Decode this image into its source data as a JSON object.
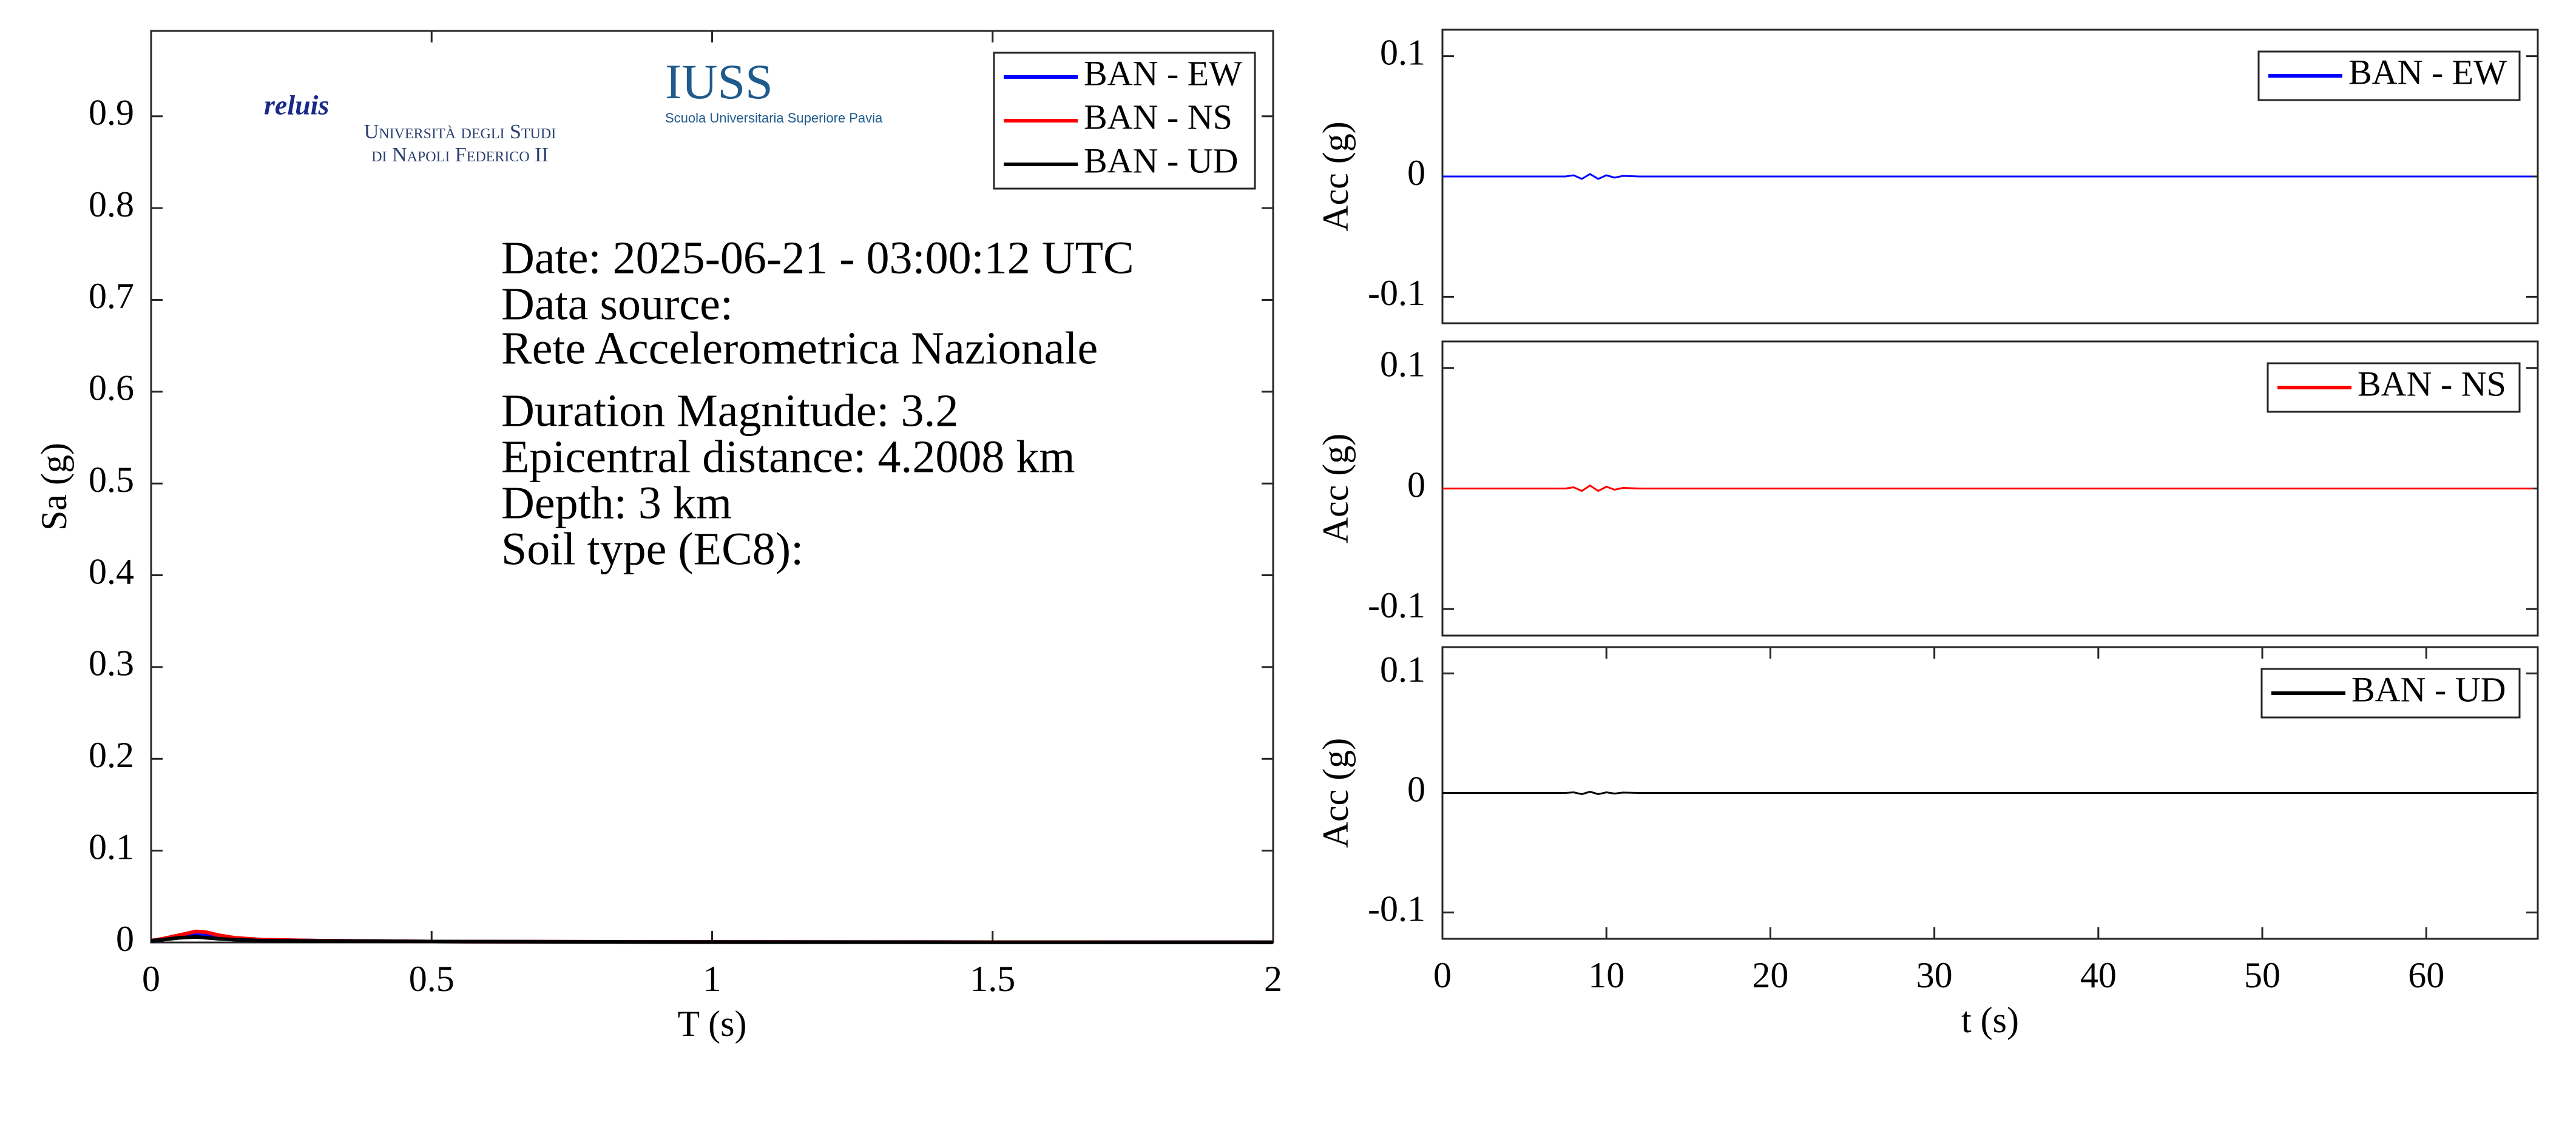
{
  "chart_data": [
    {
      "type": "line",
      "xlabel": "T (s)",
      "ylabel": "Sa (g)",
      "xlim": [
        0,
        2
      ],
      "ylim": [
        0,
        0.993
      ],
      "xticks": [
        0,
        0.5,
        1,
        1.5,
        2
      ],
      "yticks": [
        0,
        0.1,
        0.2,
        0.3,
        0.4,
        0.5,
        0.6,
        0.7,
        0.8,
        0.9
      ],
      "x": [
        0,
        0.02,
        0.05,
        0.08,
        0.1,
        0.12,
        0.15,
        0.2,
        0.3,
        0.5,
        1,
        1.5,
        2
      ],
      "series": [
        {
          "name": "BAN - EW",
          "color": "#0000ff",
          "values": [
            0.002,
            0.003,
            0.006,
            0.009,
            0.008,
            0.006,
            0.004,
            0.003,
            0.002,
            0.001,
            0.0005,
            0.0003,
            0.0002
          ]
        },
        {
          "name": "BAN - NS",
          "color": "#ff0000",
          "values": [
            0.002,
            0.004,
            0.008,
            0.012,
            0.011,
            0.008,
            0.005,
            0.003,
            0.002,
            0.001,
            0.0005,
            0.0003,
            0.0002
          ]
        },
        {
          "name": "BAN - UD",
          "color": "#000000",
          "values": [
            0.002,
            0.003,
            0.005,
            0.006,
            0.005,
            0.004,
            0.003,
            0.002,
            0.0015,
            0.001,
            0.0004,
            0.0002,
            0.0001
          ]
        }
      ],
      "legend": "upper right",
      "annotations": [
        "Date: 2025-06-21 - 03:00:12 UTC",
        "Data source:",
        "Rete Accelerometrica Nazionale",
        "Duration Magnitude: 3.2",
        "Epicentral distance: 4.2008 km",
        "Depth: 3 km",
        "Soil type (EC8):"
      ],
      "logos": [
        "reluis",
        "Università degli Studi",
        "di Napoli Federico II",
        "IUSS",
        "Scuola Universitaria Superiore Pavia"
      ]
    },
    {
      "type": "line",
      "ylabel": "Acc (g)",
      "xlim": [
        0,
        66.8
      ],
      "ylim": [
        -0.122,
        0.122
      ],
      "yticks": [
        -0.1,
        0,
        0.1
      ],
      "x": [
        0,
        7.5,
        8,
        8.5,
        9,
        9.5,
        10,
        10.5,
        11,
        12,
        66.5
      ],
      "series": [
        {
          "name": "BAN - EW",
          "color": "#0000ff",
          "values": [
            0,
            0,
            0.001,
            -0.002,
            0.002,
            -0.002,
            0.001,
            -0.001,
            0.0005,
            0,
            0
          ]
        }
      ],
      "legend": "upper right"
    },
    {
      "type": "line",
      "ylabel": "Acc (g)",
      "xlim": [
        0,
        66.8
      ],
      "ylim": [
        -0.122,
        0.122
      ],
      "yticks": [
        -0.1,
        0,
        0.1
      ],
      "x": [
        0,
        7.5,
        8,
        8.5,
        9,
        9.5,
        10,
        10.5,
        11,
        12,
        66.5
      ],
      "series": [
        {
          "name": "BAN - NS",
          "color": "#ff0000",
          "values": [
            0,
            0,
            0.001,
            -0.002,
            0.0025,
            -0.002,
            0.0015,
            -0.001,
            0.0005,
            0,
            0
          ]
        }
      ],
      "legend": "upper right"
    },
    {
      "type": "line",
      "xlabel": "t (s)",
      "ylabel": "Acc (g)",
      "xlim": [
        0,
        66.8
      ],
      "ylim": [
        -0.122,
        0.122
      ],
      "xticks": [
        0,
        10,
        20,
        30,
        40,
        50,
        60
      ],
      "yticks": [
        -0.1,
        0,
        0.1
      ],
      "x": [
        0,
        7.5,
        8,
        8.5,
        9,
        9.5,
        10,
        10.5,
        11,
        12,
        66.5
      ],
      "series": [
        {
          "name": "BAN - UD",
          "color": "#000000",
          "values": [
            0,
            0,
            0.0005,
            -0.001,
            0.001,
            -0.001,
            0.0005,
            -0.0005,
            0.0003,
            0,
            0
          ]
        }
      ],
      "legend": "upper right"
    }
  ]
}
